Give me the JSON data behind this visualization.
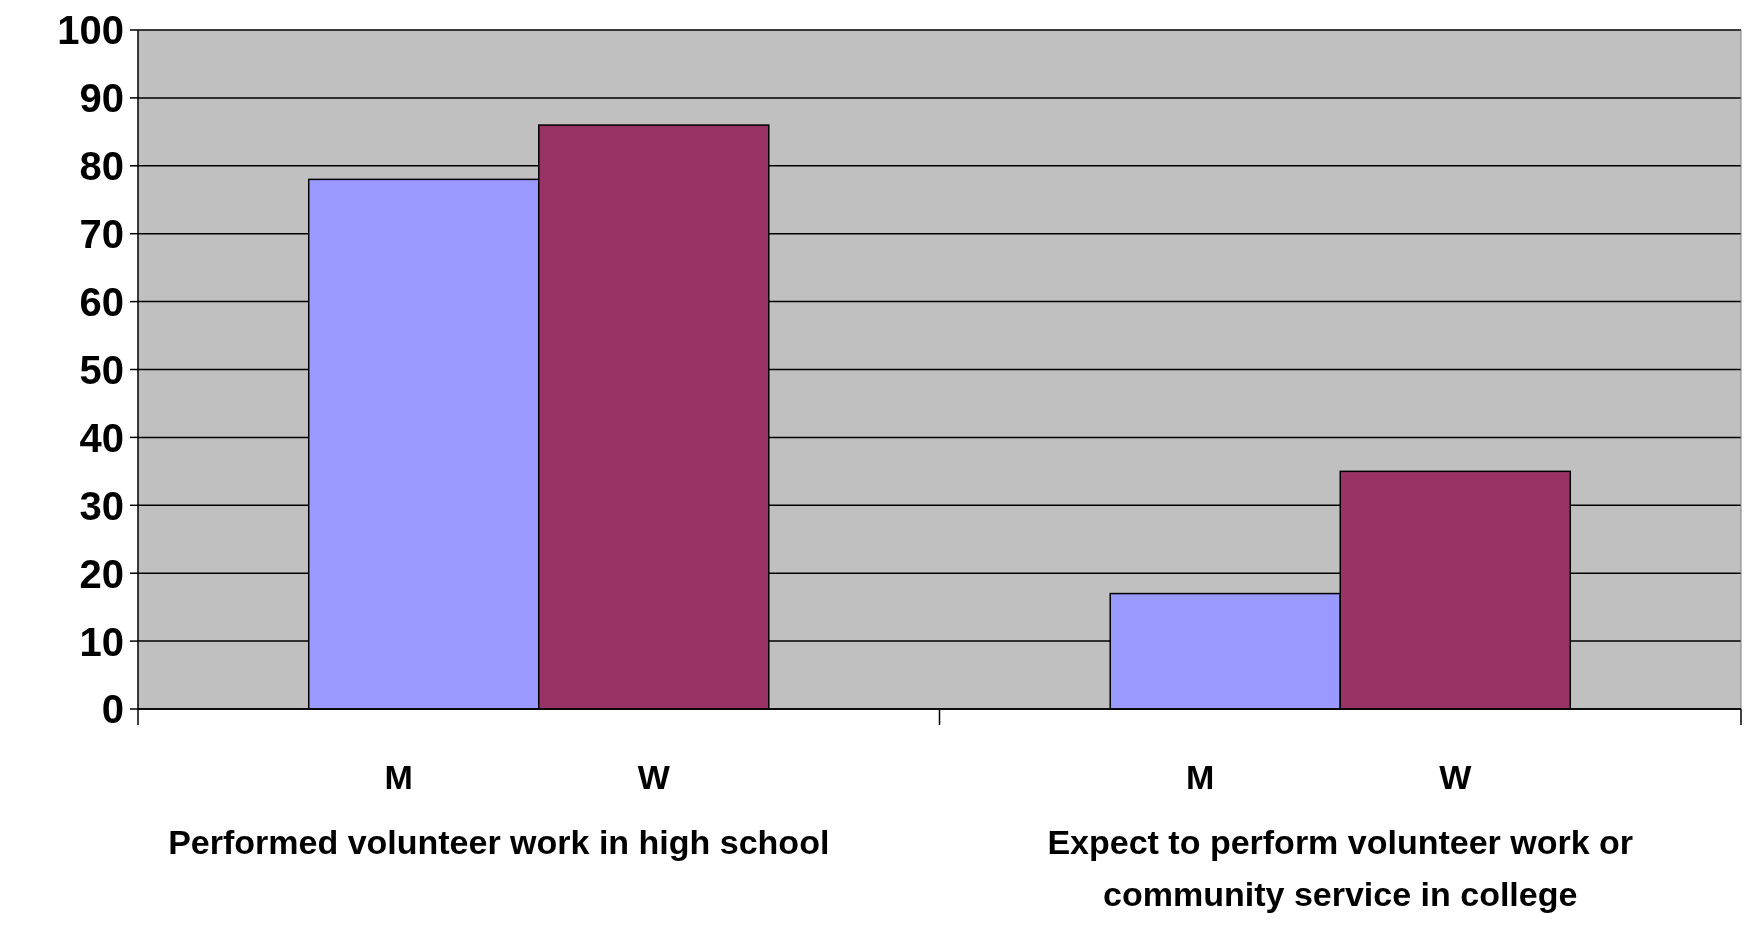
{
  "chart_data": {
    "type": "bar",
    "categories": [
      "Performed volunteer work in high school",
      "Expect to perform volunteer work or community service in college"
    ],
    "series": [
      {
        "name": "M",
        "color": "#9999ff",
        "values": [
          78,
          17
        ]
      },
      {
        "name": "W",
        "color": "#993366",
        "values": [
          86,
          35
        ]
      }
    ],
    "ylim": [
      0,
      100
    ],
    "yticks": [
      0,
      10,
      20,
      30,
      40,
      50,
      60,
      70,
      80,
      90,
      100
    ],
    "grid": "y"
  }
}
